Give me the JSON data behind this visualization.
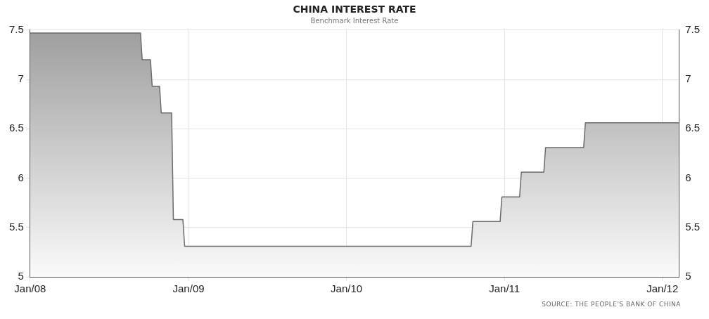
{
  "chart_data": {
    "type": "area",
    "title": "CHINA INTEREST RATE",
    "subtitle": "Benchmark Interest Rate",
    "x": [
      "2008-01-01",
      "2008-09-12",
      "2008-09-16",
      "2008-10-05",
      "2008-10-09",
      "2008-10-26",
      "2008-10-30",
      "2008-11-23",
      "2008-11-27",
      "2008-12-19",
      "2008-12-23",
      "2010-10-16",
      "2010-10-20",
      "2010-12-22",
      "2010-12-26",
      "2011-02-05",
      "2011-02-09",
      "2011-04-02",
      "2011-04-06",
      "2011-07-03",
      "2011-07-07",
      "2012-02-08"
    ],
    "values": [
      7.47,
      7.47,
      7.2,
      7.2,
      6.93,
      6.93,
      6.66,
      6.66,
      5.58,
      5.58,
      5.31,
      5.31,
      5.56,
      5.56,
      5.81,
      5.81,
      6.06,
      6.06,
      6.31,
      6.31,
      6.56,
      6.56
    ],
    "color": "#6b6b6b",
    "xlim": [
      "2008-01-01",
      "2012-02-08"
    ],
    "xticks": [
      {
        "value": "2008-01-01",
        "label": "Jan/08"
      },
      {
        "value": "2009-01-01",
        "label": "Jan/09"
      },
      {
        "value": "2010-01-01",
        "label": "Jan/10"
      },
      {
        "value": "2011-01-01",
        "label": "Jan/11"
      },
      {
        "value": "2012-01-01",
        "label": "Jan/12"
      }
    ],
    "ylim": [
      5,
      7.5
    ],
    "yticks": [
      5,
      5.5,
      6,
      6.5,
      7,
      7.5
    ],
    "y2lim": [
      5,
      7.5
    ],
    "y2ticks": [
      5,
      5.5,
      6,
      6.5,
      7,
      7.5
    ],
    "grid": true,
    "legend": false,
    "annotations": [
      "SOURCE: THE PEOPLE'S BANK OF CHINA"
    ]
  }
}
